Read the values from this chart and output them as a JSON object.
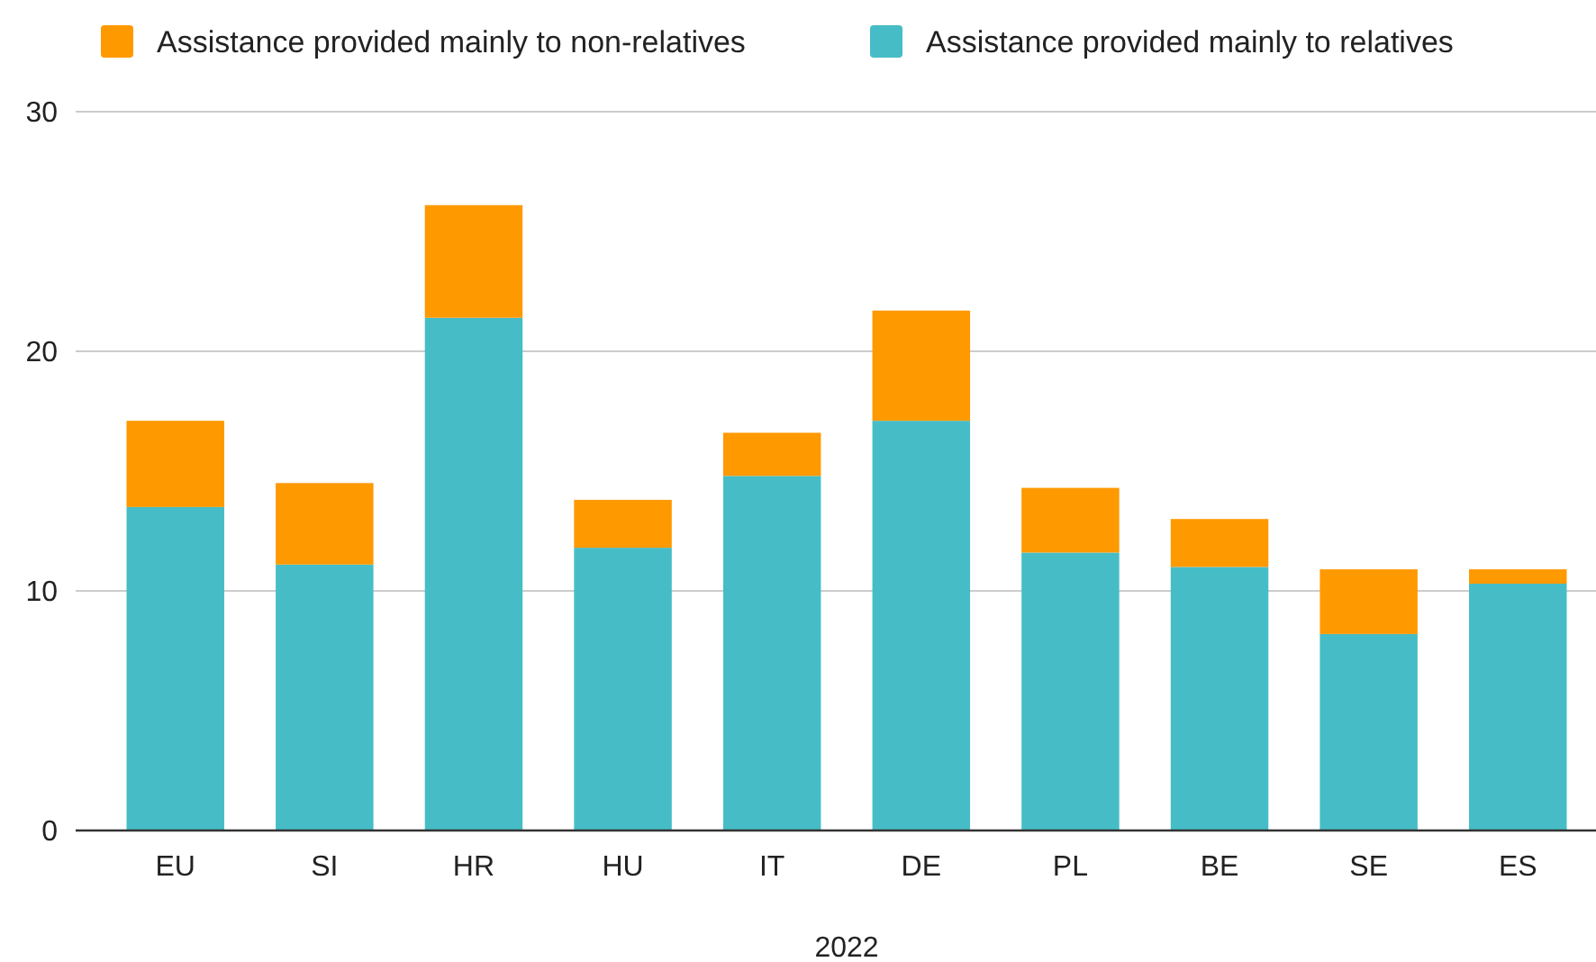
{
  "chart_data": {
    "type": "bar",
    "stacked": true,
    "xlabel": "2022",
    "categories": [
      "EU",
      "SI",
      "HR",
      "HU",
      "IT",
      "DE",
      "PL",
      "BE",
      "SE",
      "ES"
    ],
    "series": [
      {
        "name": "Assistance provided mainly to relatives",
        "color": "#46bdc6",
        "values": [
          13.5,
          11.1,
          21.4,
          11.8,
          14.8,
          17.1,
          11.6,
          11.0,
          8.2,
          10.3
        ]
      },
      {
        "name": "Assistance provided mainly to non-relatives",
        "color": "#ff9900",
        "values": [
          3.6,
          3.4,
          4.7,
          2.0,
          1.8,
          4.6,
          2.7,
          2.0,
          2.7,
          0.6
        ]
      }
    ],
    "ylim": [
      0,
      30
    ],
    "yticks": [
      0,
      10,
      20,
      30
    ],
    "grid": "y",
    "legend": "top"
  }
}
